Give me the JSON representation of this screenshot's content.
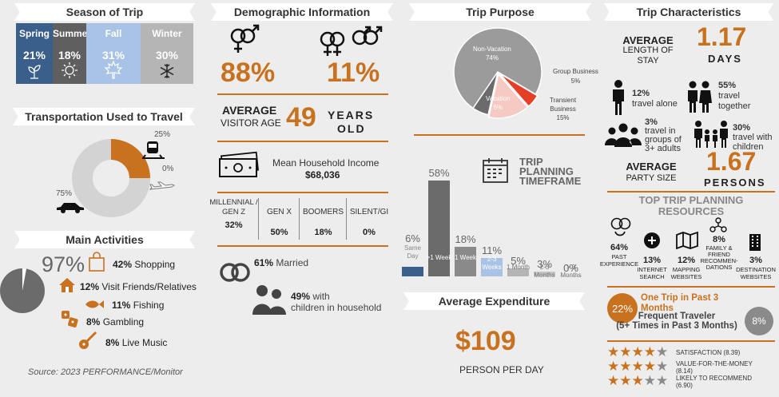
{
  "season": {
    "title": "Season of Trip",
    "items": [
      {
        "name": "Spring",
        "pct": "21%",
        "color": "#3a5f8a"
      },
      {
        "name": "Summer",
        "pct": "18%",
        "color": "#5f5f5f"
      },
      {
        "name": "Fall",
        "pct": "31%",
        "color": "#a9c3e6"
      },
      {
        "name": "Winter",
        "pct": "30%",
        "color": "#b5b5b5"
      }
    ]
  },
  "transport": {
    "title": "Transportation Used to Travel",
    "rail_pct": "25%",
    "air_pct": "0%",
    "car_pct": "75%"
  },
  "activities": {
    "title": "Main Activities",
    "shopping_big": "97%",
    "items": [
      {
        "pct": "42%",
        "label": "Shopping"
      },
      {
        "pct": "12%",
        "label": "Visit Friends/Relatives"
      },
      {
        "pct": "11%",
        "label": "Fishing"
      },
      {
        "pct": "8%",
        "label": "Gambling"
      },
      {
        "pct": "8%",
        "label": "Live Music"
      }
    ]
  },
  "source": "Source: 2023 PERFORMANCE/Monitor",
  "demographic": {
    "title": "Demographic Information",
    "female_pct": "88%",
    "male_pct": "11%",
    "avg_label_1": "AVERAGE",
    "avg_label_2": "VISITOR AGE",
    "avg_age": "49",
    "years_1": "YEARS",
    "years_2": "OLD",
    "income_label": "Mean Household Income",
    "income_value": "$68,036",
    "generations": [
      {
        "label": "MILLENNIAL / GEN Z",
        "pct": "32%"
      },
      {
        "label": "GEN X",
        "pct": "50%"
      },
      {
        "label": "BOOMERS",
        "pct": "18%"
      },
      {
        "label": "SILENT/GI",
        "pct": "0%"
      }
    ],
    "married_pct": "61%",
    "married_label": "Married",
    "children_pct": "49%",
    "children_label_1": "with",
    "children_label_2": "children in household"
  },
  "purpose": {
    "title": "Trip Purpose",
    "nonvac_label": "Non-Vacation",
    "nonvac_pct": "74%",
    "vac_label": "Vacation",
    "vac_pct": "6%",
    "group_label": "Group Business",
    "group_pct": "5%",
    "transient_label_1": "Transient",
    "transient_label_2": "Business",
    "transient_pct": "15%"
  },
  "chart_data": {
    "type": "bar",
    "title": "TRIP PLANNING TIMEFRAME",
    "categories": [
      "Same Day",
      ">1 Week",
      "1 Week",
      "2-3 Weeks",
      "1 Month",
      "2-3 Months",
      "> 3 Months"
    ],
    "values": [
      6,
      58,
      18,
      11,
      5,
      3,
      0
    ],
    "colors": [
      "#3a5f8a",
      "#6b6b6b",
      "#8a8a8a",
      "#a9c3e6",
      "#b5b5b5",
      "#c5c5c5",
      "#d0d0d0"
    ],
    "value_labels": [
      "6%",
      "58%",
      "18%",
      "11%",
      "5%",
      "3%",
      "0%"
    ]
  },
  "timeframe_title_1": "TRIP",
  "timeframe_title_2": "PLANNING",
  "timeframe_title_3": "TIMEFRAME",
  "expenditure": {
    "title": "Average Expenditure",
    "value": "$109",
    "unit": "PERSON PER DAY"
  },
  "characteristics": {
    "title": "Trip Characteristics",
    "stay_1": "AVERAGE",
    "stay_2": "LENGTH OF",
    "stay_3": "STAY",
    "stay_value": "1.17",
    "stay_unit": "DAYS",
    "alone_pct": "12%",
    "alone_label": "travel alone",
    "together_pct": "55%",
    "together_1": "travel",
    "together_2": "together",
    "groups_pct": "3%",
    "groups_1": "travel in",
    "groups_2": "groups of",
    "groups_3": "3+ adults",
    "children_pct": "30%",
    "children_1": "travel with",
    "children_2": "children",
    "party_1": "AVERAGE",
    "party_2": "PARTY SIZE",
    "party_value": "1.67",
    "party_unit": "PERSONS"
  },
  "resources": {
    "title_1": "TOP TRIP PLANNING",
    "title_2": "RESOURCES",
    "items": [
      {
        "pct": "64%",
        "label_1": "PAST",
        "label_2": "EXPERIENCE"
      },
      {
        "pct": "13%",
        "label_1": "INTERNET",
        "label_2": "SEARCH"
      },
      {
        "pct": "12%",
        "label_1": "MAPPING",
        "label_2": "WEBSITES"
      },
      {
        "pct": "8%",
        "label_1": "FAMILY &",
        "label_2": "FRIEND",
        "label_3": "RECOMMEN-",
        "label_4": "DATIONS"
      },
      {
        "pct": "3%",
        "label_1": "DESTINATION",
        "label_2": "WEBSITES"
      }
    ]
  },
  "frequency": {
    "one_trip_pct": "22%",
    "one_trip_1": "One Trip in Past 3",
    "one_trip_2": "Months",
    "frequent_1": "Frequent Traveler",
    "frequent_2": "(5+ Times in Past 3 Months)",
    "frequent_pct": "8%"
  },
  "ratings": [
    {
      "label": "SATISFACTION (8.39)",
      "stars": 4
    },
    {
      "label_1": "VALUE-FOR-THE-MONEY",
      "label_2": "(8.14)",
      "stars": 4
    },
    {
      "label_1": "LIKELY TO RECOMMEND",
      "label_2": "(6.90)",
      "stars": 3
    }
  ]
}
